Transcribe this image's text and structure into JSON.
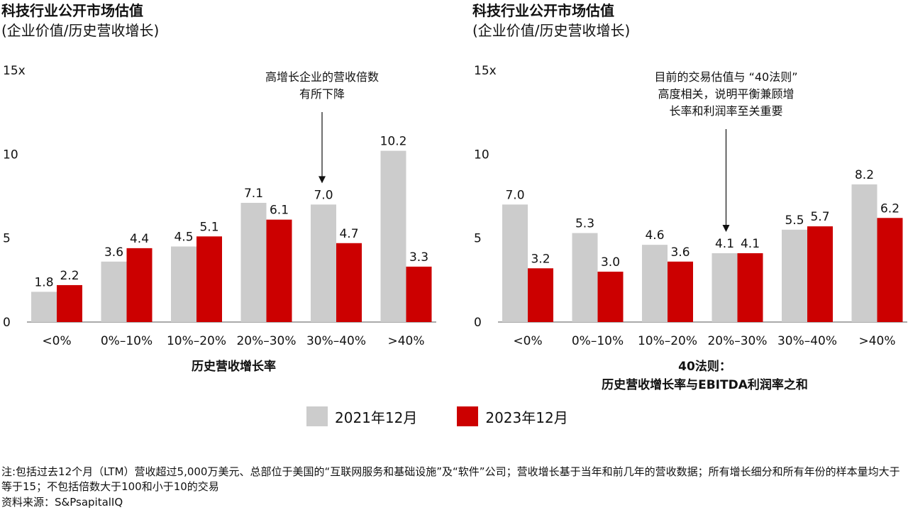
{
  "charts": [
    {
      "title": "科技行业公开市场估值",
      "subtitle": "(企业价值/历史营收增长)"
    },
    {
      "title": "科技行业公开市场估值",
      "subtitle": "(企业价值/历史营收增长)"
    }
  ],
  "legend": [
    {
      "label": "2021年12月",
      "color": "#cccccc"
    },
    {
      "label": "2023年12月",
      "color": "#cc0000"
    }
  ],
  "footnote": "注:包括过去12个月（LTM）营收超过5,000万美元、总部位于美国的“互联网服务和基础设施”及“软件”公司；营收增长基于当年和前几年的营收数据；所有增长细分和所有年份的样本量均大于等于15；不包括倍数大于100和小于10的交易",
  "source": "资料来源：S&PsapitalIQ",
  "chart_data": [
    {
      "type": "bar",
      "title": "科技行业公开市场估值",
      "subtitle": "(企业价值/历史营收增长)",
      "categories": [
        "<0%",
        "0%–10%",
        "10%–20%",
        "20%–30%",
        "30%–40%",
        ">40%"
      ],
      "series": [
        {
          "name": "2021年12月",
          "color": "#cccccc",
          "values": [
            1.8,
            3.6,
            4.5,
            7.1,
            7.0,
            10.2
          ]
        },
        {
          "name": "2023年12月",
          "color": "#cc0000",
          "values": [
            2.2,
            4.4,
            5.1,
            6.1,
            4.7,
            3.3
          ]
        }
      ],
      "yticks": [
        "0",
        "5",
        "10",
        "15x"
      ],
      "ylim": [
        0,
        15
      ],
      "xlabel": [
        "历史营收增长率"
      ],
      "annotation": {
        "lines": [
          "高增长企业的营收倍数",
          "有所下降"
        ],
        "category_index": 4
      }
    },
    {
      "type": "bar",
      "title": "科技行业公开市场估值",
      "subtitle": "(企业价值/历史营收增长)",
      "categories": [
        "<0%",
        "0%–10%",
        "10%–20%",
        "20%–30%",
        "30%–40%",
        ">40%"
      ],
      "series": [
        {
          "name": "2021年12月",
          "color": "#cccccc",
          "values": [
            7.0,
            5.3,
            4.6,
            4.1,
            5.5,
            8.2
          ]
        },
        {
          "name": "2023年12月",
          "color": "#cc0000",
          "values": [
            3.2,
            3.0,
            3.6,
            4.1,
            5.7,
            6.2
          ]
        }
      ],
      "yticks": [
        "0",
        "5",
        "10",
        "15x"
      ],
      "ylim": [
        0,
        15
      ],
      "xlabel": [
        "40法则：",
        "历史营收增长率与EBITDA利润率之和"
      ],
      "annotation": {
        "lines": [
          "目前的交易估值与 “40法则”",
          "高度相关，说明平衡兼顾增",
          "长率和利润率至关重要"
        ],
        "category_index": 3
      }
    }
  ]
}
